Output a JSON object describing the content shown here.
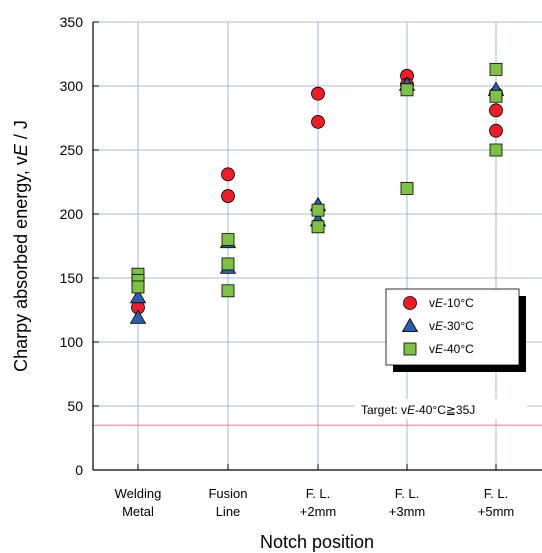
{
  "chart_data": {
    "type": "scatter",
    "categories": [
      [
        "Welding",
        "Metal"
      ],
      [
        "Fusion",
        "Line"
      ],
      [
        "F. L.",
        "+2mm"
      ],
      [
        "F. L.",
        "+3mm"
      ],
      [
        "F. L.",
        "+5mm"
      ]
    ],
    "xlabel": "Notch position",
    "ylabel_plain": "Charpy absorbed energy, v",
    "ylabel_italic": "E",
    "ylabel_unit": " / J",
    "ylim": [
      0,
      350
    ],
    "yticks": [
      0,
      50,
      100,
      150,
      200,
      250,
      300,
      350
    ],
    "grid": true,
    "legend_position": "right-middle",
    "series": [
      {
        "name": "vE-10°C",
        "marker": "circle",
        "color": "#ee1c24",
        "points": [
          {
            "x": 0,
            "y": 127
          },
          {
            "x": 1,
            "y": 231
          },
          {
            "x": 1,
            "y": 214
          },
          {
            "x": 2,
            "y": 294
          },
          {
            "x": 2,
            "y": 272
          },
          {
            "x": 3,
            "y": 308
          },
          {
            "x": 3,
            "y": 301
          },
          {
            "x": 4,
            "y": 294
          },
          {
            "x": 4,
            "y": 281
          },
          {
            "x": 4,
            "y": 265
          }
        ]
      },
      {
        "name": "vE-30°C",
        "marker": "triangle",
        "color": "#2a5db0",
        "points": [
          {
            "x": 0,
            "y": 135
          },
          {
            "x": 0,
            "y": 119
          },
          {
            "x": 1,
            "y": 178
          },
          {
            "x": 1,
            "y": 158
          },
          {
            "x": 2,
            "y": 207
          },
          {
            "x": 2,
            "y": 195
          },
          {
            "x": 3,
            "y": 301
          },
          {
            "x": 4,
            "y": 297
          }
        ]
      },
      {
        "name": "vE-40°C",
        "marker": "square",
        "color": "#7dc242",
        "points": [
          {
            "x": 0,
            "y": 153
          },
          {
            "x": 0,
            "y": 148
          },
          {
            "x": 0,
            "y": 143
          },
          {
            "x": 1,
            "y": 180
          },
          {
            "x": 1,
            "y": 161
          },
          {
            "x": 1,
            "y": 140
          },
          {
            "x": 2,
            "y": 203
          },
          {
            "x": 2,
            "y": 190
          },
          {
            "x": 3,
            "y": 297
          },
          {
            "x": 3,
            "y": 220
          },
          {
            "x": 4,
            "y": 313
          },
          {
            "x": 4,
            "y": 292
          },
          {
            "x": 4,
            "y": 250
          }
        ]
      }
    ],
    "target": {
      "value": 35,
      "color": "#ef7b7b",
      "label_prefix": "Target: v",
      "label_italic": "E",
      "label_suffix": "-40°C≧35J"
    },
    "legend_entries": [
      {
        "prefix": "v",
        "italic": "E",
        "suffix": "-10°C"
      },
      {
        "prefix": "v",
        "italic": "E",
        "suffix": "-30°C"
      },
      {
        "prefix": "v",
        "italic": "E",
        "suffix": "-40°C"
      }
    ]
  }
}
